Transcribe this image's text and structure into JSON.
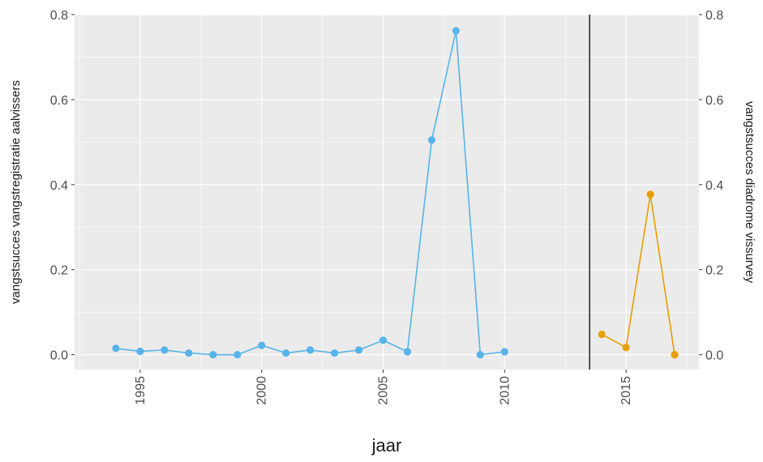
{
  "chart_data": {
    "type": "line",
    "xlabel": "jaar",
    "ylabel_left": "vangstsucces vangstregistratie aalvissers",
    "ylabel_right": "vangstsucces diadrome vissurvey",
    "xlim": [
      1992.3,
      2018.0
    ],
    "ylim": [
      -0.035,
      0.8
    ],
    "x_ticks": [
      1995,
      2000,
      2005,
      2010,
      2015
    ],
    "x_tick_labels": [
      "1995",
      "2000",
      "2005",
      "2010",
      "2015"
    ],
    "y_ticks": [
      0,
      0.2,
      0.4,
      0.6,
      0.8
    ],
    "y_tick_labels": [
      "0.0",
      "0.2",
      "0.4",
      "0.6",
      "0.8"
    ],
    "vertical_line_x": 2013.5,
    "grid": true,
    "colors": {
      "panel_background": "#ebebeb",
      "grid": "#ffffff",
      "vline": "#000000"
    },
    "series": [
      {
        "color": "#56b4e9",
        "axis": "left",
        "points": [
          {
            "x": 1994,
            "y": 0.015
          },
          {
            "x": 1995,
            "y": 0.008
          },
          {
            "x": 1996,
            "y": 0.011
          },
          {
            "x": 1997,
            "y": 0.004
          },
          {
            "x": 1998,
            "y": 0.0
          },
          {
            "x": 1999,
            "y": 0.0
          },
          {
            "x": 2000,
            "y": 0.022
          },
          {
            "x": 2001,
            "y": 0.004
          },
          {
            "x": 2002,
            "y": 0.011
          },
          {
            "x": 2003,
            "y": 0.004
          },
          {
            "x": 2004,
            "y": 0.011
          },
          {
            "x": 2005,
            "y": 0.034
          },
          {
            "x": 2006,
            "y": 0.007
          },
          {
            "x": 2007,
            "y": 0.505
          },
          {
            "x": 2008,
            "y": 0.762
          },
          {
            "x": 2009,
            "y": 0.0
          },
          {
            "x": 2010,
            "y": 0.007
          }
        ]
      },
      {
        "color": "#e69f00",
        "axis": "right",
        "points": [
          {
            "x": 2014,
            "y": 0.048
          },
          {
            "x": 2015,
            "y": 0.017
          },
          {
            "x": 2016,
            "y": 0.377
          },
          {
            "x": 2017,
            "y": 0.0
          }
        ]
      }
    ]
  }
}
